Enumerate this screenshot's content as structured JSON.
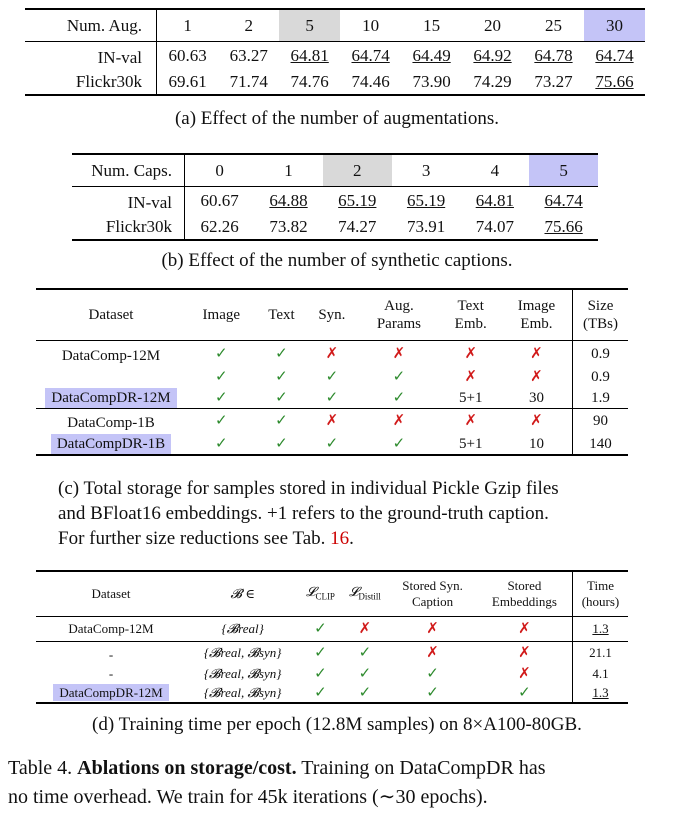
{
  "table_a": {
    "header": [
      "Num. Aug.",
      "1",
      "2",
      "5",
      "10",
      "15",
      "20",
      "25",
      "30"
    ],
    "rows": [
      {
        "label": "IN-val",
        "cells": [
          "60.63",
          "63.27",
          "64.81",
          "64.74",
          "64.49",
          "64.92",
          "64.78",
          "64.74"
        ]
      },
      {
        "label": "Flickr30k",
        "cells": [
          "69.61",
          "71.74",
          "74.76",
          "74.46",
          "73.90",
          "74.29",
          "73.27",
          "75.66"
        ]
      }
    ],
    "caption": "(a) Effect of the number of augmentations."
  },
  "table_b": {
    "header": [
      "Num. Caps.",
      "0",
      "1",
      "2",
      "3",
      "4",
      "5"
    ],
    "rows": [
      {
        "label": "IN-val",
        "cells": [
          "60.67",
          "64.88",
          "65.19",
          "65.19",
          "64.81",
          "64.74"
        ]
      },
      {
        "label": "Flickr30k",
        "cells": [
          "62.26",
          "73.82",
          "74.27",
          "73.91",
          "74.07",
          "75.66"
        ]
      }
    ],
    "caption": "(b) Effect of the number of synthetic captions."
  },
  "table_c": {
    "header": {
      "dataset": "Dataset",
      "image": "Image",
      "text": "Text",
      "syn": "Syn.",
      "aug_1": "Aug.",
      "aug_2": "Params",
      "temb_1": "Text",
      "temb_2": "Emb.",
      "iemb_1": "Image",
      "iemb_2": "Emb.",
      "size_1": "Size",
      "size_2": "(TBs)"
    },
    "rows": [
      {
        "dataset": "DataComp-12M",
        "image": "✓",
        "text": "✓",
        "syn": "✗",
        "aug": "✗",
        "temb": "✗",
        "iemb": "✗",
        "size": "0.9"
      },
      {
        "dataset": "",
        "image": "✓",
        "text": "✓",
        "syn": "✓",
        "aug": "✓",
        "temb": "✗",
        "iemb": "✗",
        "size": "0.9"
      },
      {
        "dataset": "DataCompDR-12M",
        "image": "✓",
        "text": "✓",
        "syn": "✓",
        "aug": "✓",
        "temb": "5+1",
        "iemb": "30",
        "size": "1.9"
      },
      {
        "dataset": "DataComp-1B",
        "image": "✓",
        "text": "✓",
        "syn": "✗",
        "aug": "✗",
        "temb": "✗",
        "iemb": "✗",
        "size": "90"
      },
      {
        "dataset": "DataCompDR-1B",
        "image": "✓",
        "text": "✓",
        "syn": "✓",
        "aug": "✓",
        "temb": "5+1",
        "iemb": "10",
        "size": "140"
      }
    ],
    "caption_lines": [
      "(c) Total storage for samples stored in individual Pickle Gzip files",
      "and BFloat16 embeddings. +1 refers to the ground-truth caption.",
      "For further size reductions see Tab. "
    ],
    "caption_ref": "16",
    "caption_end": "."
  },
  "table_d": {
    "header": {
      "dataset": "Dataset",
      "b": "𝓑 ∈",
      "clip": "𝓛",
      "clip_sub": "CLIP",
      "distill": "𝓛",
      "distill_sub": "Distill",
      "ssc_1": "Stored Syn.",
      "ssc_2": "Caption",
      "se_1": "Stored",
      "se_2": "Embeddings",
      "time_1": "Time",
      "time_2": "(hours)"
    },
    "rows": [
      {
        "dataset": "DataComp-12M",
        "b": "{𝓑real}",
        "clip": "✓",
        "distill": "✗",
        "ssc": "✗",
        "se": "✗",
        "time": "1.3"
      },
      {
        "dataset": "-",
        "b": "{𝓑real, 𝓑syn}",
        "clip": "✓",
        "distill": "✓",
        "ssc": "✗",
        "se": "✗",
        "time": "21.1"
      },
      {
        "dataset": "-",
        "b": "{𝓑real, 𝓑syn}",
        "clip": "✓",
        "distill": "✓",
        "ssc": "✓",
        "se": "✗",
        "time": "4.1"
      },
      {
        "dataset": "DataCompDR-12M",
        "b": "{𝓑real, 𝓑syn}",
        "clip": "✓",
        "distill": "✓",
        "ssc": "✓",
        "se": "✓",
        "time": "1.3"
      }
    ],
    "caption": "(d) Training time per epoch (12.8M samples) on 8×A100-80GB."
  },
  "table_caption": {
    "label": "Table 4.",
    "bold": "Ablations on storage/cost.",
    "rest_1": " Training on DataCompDR has",
    "line_2": "no time overhead. We train for 45k iterations (∼30 epochs)."
  }
}
